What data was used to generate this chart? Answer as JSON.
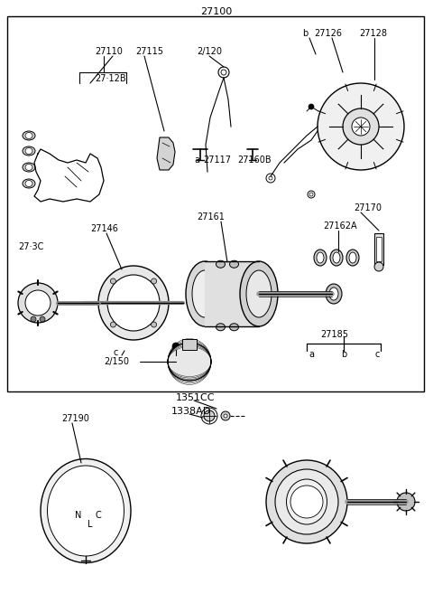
{
  "title": "27100",
  "bg_color": "#ffffff",
  "text_color": "#000000",
  "fig_width": 4.8,
  "fig_height": 6.57,
  "dpi": 100,
  "labels": {
    "lbl_27110": "27110",
    "lbl_27115": "27115",
    "lbl_2712B": "27·12B",
    "lbl_27120": "2/120",
    "lbl_b_top": "b",
    "lbl_27126": "27126",
    "lbl_27128": "27128",
    "lbl_a_top": "a",
    "lbl_27117": "27117",
    "lbl_27160B": "27160B",
    "lbl_27170": "27170",
    "lbl_27162A": "27162A",
    "lbl_27161": "27161",
    "lbl_2730": "27·3C",
    "lbl_27146": "27146",
    "lbl_c_mid": "c",
    "lbl_27150": "2/150",
    "lbl_27185": "27185",
    "lbl_a_screw": "a",
    "lbl_b_screw": "b",
    "lbl_c_screw": "c",
    "lbl_1351CC": "1351CC",
    "lbl_1338AD": "1338AD",
    "lbl_27190": "27190"
  }
}
